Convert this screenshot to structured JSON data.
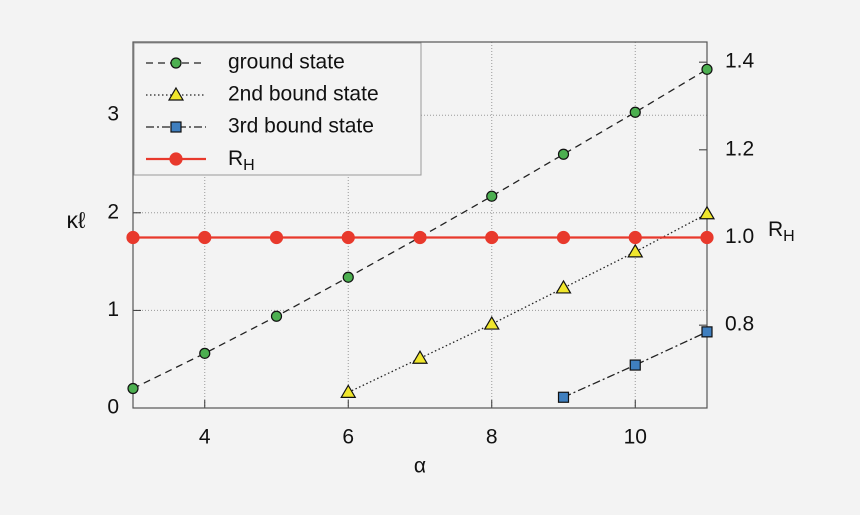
{
  "chart_data": {
    "type": "line",
    "xlabel": "α",
    "ylabel": "κℓ",
    "y2label": "RH",
    "xlim": [
      3,
      11
    ],
    "xticks": [
      4,
      6,
      8,
      10
    ],
    "ylim": [
      0,
      3.75
    ],
    "yticks": [
      0,
      1,
      2,
      3
    ],
    "y2lim": [
      0.611,
      1.446
    ],
    "y2ticks": [
      0.8,
      {
        "value": 1,
        "label": "1.0"
      },
      1.2,
      1.4
    ],
    "grid": true,
    "legend": "upper left",
    "series": [
      {
        "name": "ground state",
        "color": "#4caf50",
        "line_color": "#222222",
        "marker": "circle",
        "linestyle": "dashed",
        "x": [
          3,
          4,
          5,
          6,
          7,
          8,
          9,
          10,
          11
        ],
        "values": [
          0.2,
          0.56,
          0.94,
          1.34,
          1.75,
          2.17,
          2.6,
          3.03,
          3.47
        ]
      },
      {
        "name": "2nd bound state",
        "color": "#f0e62c",
        "line_color": "#222222",
        "marker": "triangle",
        "linestyle": "dotted",
        "x": [
          6,
          7,
          8,
          9,
          10,
          11
        ],
        "values": [
          0.16,
          0.51,
          0.86,
          1.23,
          1.6,
          1.99
        ]
      },
      {
        "name": "3rd bound state",
        "color": "#3f7fbf",
        "line_color": "#222222",
        "marker": "square",
        "linestyle": "dashdot",
        "x": [
          9,
          10,
          11
        ],
        "values": [
          0.11,
          0.44,
          0.78
        ]
      },
      {
        "name": "RH",
        "color": "#e8392c",
        "line_color": "#e8392c",
        "marker": "circle",
        "linestyle": "solid",
        "axis": "y2",
        "x": [
          3,
          4,
          5,
          6,
          7,
          8,
          9,
          10,
          11
        ],
        "values": [
          1,
          1,
          1,
          1,
          1,
          1,
          1,
          1,
          1
        ]
      }
    ]
  }
}
